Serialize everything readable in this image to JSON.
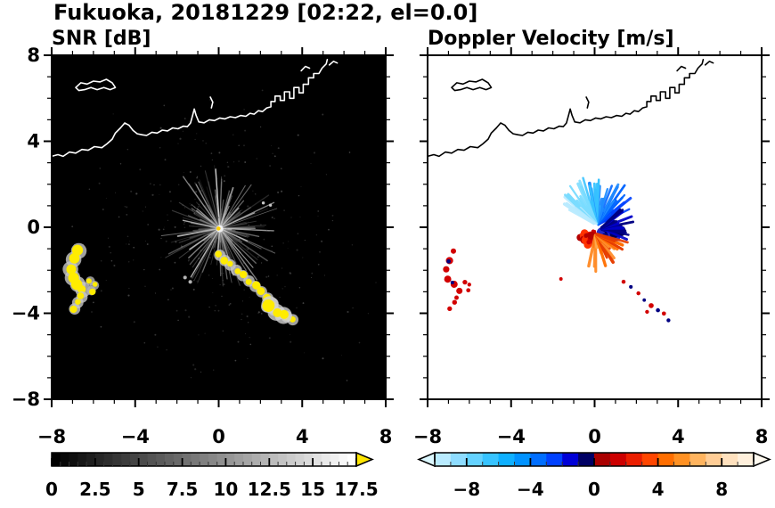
{
  "title": "Fukuoka, 20181229 [02:22, el=0.0]",
  "coastline": {
    "stroke_width": 1.6,
    "segments": [
      [
        [
          -8,
          3.3
        ],
        [
          -7.7,
          3.38
        ],
        [
          -7.45,
          3.3
        ],
        [
          -7.15,
          3.5
        ],
        [
          -6.85,
          3.45
        ],
        [
          -6.55,
          3.62
        ],
        [
          -6.25,
          3.58
        ],
        [
          -5.95,
          3.75
        ],
        [
          -5.6,
          3.7
        ],
        [
          -5.35,
          3.88
        ],
        [
          -5.1,
          4.1
        ],
        [
          -4.95,
          4.38
        ],
        [
          -4.7,
          4.62
        ],
        [
          -4.5,
          4.85
        ],
        [
          -4.3,
          4.75
        ],
        [
          -4.1,
          4.5
        ],
        [
          -3.9,
          4.35
        ],
        [
          -3.65,
          4.3
        ],
        [
          -3.45,
          4.27
        ],
        [
          -3.2,
          4.42
        ],
        [
          -2.95,
          4.38
        ],
        [
          -2.7,
          4.52
        ],
        [
          -2.45,
          4.48
        ],
        [
          -2.2,
          4.62
        ],
        [
          -1.95,
          4.58
        ],
        [
          -1.7,
          4.7
        ],
        [
          -1.5,
          4.68
        ],
        [
          -1.35,
          4.85
        ],
        [
          -1.25,
          5.2
        ],
        [
          -1.17,
          5.5
        ],
        [
          -1.08,
          5.2
        ],
        [
          -0.95,
          4.9
        ],
        [
          -0.7,
          4.86
        ],
        [
          -0.45,
          5.0
        ],
        [
          -0.2,
          4.96
        ],
        [
          0.05,
          5.08
        ],
        [
          0.3,
          5.04
        ],
        [
          0.55,
          5.14
        ],
        [
          0.8,
          5.1
        ],
        [
          1.05,
          5.2
        ],
        [
          1.3,
          5.16
        ],
        [
          1.5,
          5.3
        ],
        [
          1.7,
          5.26
        ],
        [
          1.9,
          5.42
        ],
        [
          2.1,
          5.38
        ],
        [
          2.3,
          5.55
        ],
        [
          2.5,
          5.6
        ],
        [
          2.5,
          5.85
        ],
        [
          2.7,
          5.85
        ],
        [
          2.7,
          6.1
        ],
        [
          2.95,
          6.1
        ],
        [
          2.95,
          5.9
        ],
        [
          3.15,
          5.9
        ],
        [
          3.15,
          6.3
        ],
        [
          3.4,
          6.3
        ],
        [
          3.4,
          6.0
        ],
        [
          3.6,
          6.0
        ],
        [
          3.6,
          6.5
        ],
        [
          3.85,
          6.5
        ],
        [
          3.85,
          6.25
        ],
        [
          4.05,
          6.25
        ],
        [
          4.05,
          6.65
        ],
        [
          4.3,
          6.65
        ],
        [
          4.3,
          6.95
        ],
        [
          4.55,
          6.95
        ],
        [
          4.55,
          7.15
        ],
        [
          4.8,
          7.15
        ],
        [
          4.95,
          7.4
        ],
        [
          5.15,
          7.6
        ],
        [
          5.2,
          7.8
        ]
      ],
      [
        [
          -6.85,
          6.5
        ],
        [
          -6.6,
          6.72
        ],
        [
          -6.3,
          6.66
        ],
        [
          -6.0,
          6.8
        ],
        [
          -5.68,
          6.76
        ],
        [
          -5.38,
          6.88
        ],
        [
          -5.1,
          6.72
        ],
        [
          -4.95,
          6.5
        ],
        [
          -5.2,
          6.4
        ],
        [
          -5.5,
          6.5
        ],
        [
          -5.82,
          6.4
        ],
        [
          -6.12,
          6.5
        ],
        [
          -6.42,
          6.4
        ],
        [
          -6.7,
          6.36
        ],
        [
          -6.85,
          6.5
        ]
      ],
      [
        [
          -0.35,
          5.55
        ],
        [
          -0.28,
          5.82
        ],
        [
          -0.4,
          6.05
        ]
      ],
      [
        [
          3.95,
          7.28
        ],
        [
          4.15,
          7.48
        ],
        [
          4.35,
          7.4
        ]
      ],
      [
        [
          5.3,
          7.55
        ],
        [
          5.5,
          7.72
        ],
        [
          5.68,
          7.64
        ]
      ]
    ]
  },
  "chart_data": [
    {
      "type": "heatmap",
      "name": "snr",
      "title": "SNR [dB]",
      "xlabel": "",
      "ylabel": "",
      "xlim": [
        -8,
        8
      ],
      "ylim": [
        -8,
        8
      ],
      "xticks": [
        -8,
        -4,
        0,
        4,
        8
      ],
      "yticks": [
        -8,
        -4,
        0,
        4,
        8
      ],
      "xtick_labels": [
        "−8",
        "−4",
        "0",
        "4",
        "8"
      ],
      "ytick_labels": [
        "−8",
        "−4",
        "0",
        "4",
        "8"
      ],
      "minor_tick_step": 1,
      "background": "#000000",
      "coast_color": "#ffffff",
      "colorbar": {
        "kind": "gradient-blocks",
        "min": 0,
        "max": 17.5,
        "blocks": 35,
        "tick_values": [
          0,
          2.5,
          5,
          7.5,
          10,
          12.5,
          15,
          17.5
        ],
        "tick_labels": [
          "0",
          "2.5",
          "5",
          "7.5",
          "10",
          "12.5",
          "15",
          "17.5"
        ],
        "minor_step": 0.5,
        "start_color": "#000000",
        "end_color": "#ffffff",
        "over_arrow_color": "#ffe600"
      },
      "echoes": [
        {
          "name": "ground-clutter",
          "kind": "fan",
          "center": [
            0.05,
            -0.05
          ],
          "a0": 0,
          "a1": 360,
          "rays": 140,
          "min_r": 0.25,
          "max_r": 3.0,
          "width": [
            0.7,
            1.5
          ],
          "opacity": [
            0.2,
            0.75
          ],
          "colors": [
            "#787878",
            "#969696",
            "#b4b4b4",
            "#5a5a5a"
          ],
          "color_mode": "random",
          "seed": 11
        },
        {
          "name": "bright-clutter-rays",
          "kind": "fan",
          "center": [
            0.05,
            -0.05
          ],
          "a0": 0,
          "a1": 360,
          "rays": 16,
          "min_r": 1.2,
          "max_r": 2.9,
          "width": [
            1.0,
            1.8
          ],
          "opacity": [
            0.65,
            0.95
          ],
          "colors": [
            "#d2d2d2",
            "#bebebe"
          ],
          "color_mode": "random",
          "seed": 29
        },
        {
          "name": "noise-speckle",
          "kind": "cluster",
          "center": [
            0,
            -0.6
          ],
          "spread": [
            7.7,
            7.0
          ],
          "count": 300,
          "rpx": [
            0.4,
            1.1
          ],
          "opacity": 0.45,
          "colors": [
            "#6e6e6e",
            "#8c8c8c",
            "#505050"
          ],
          "seed": 5
        },
        {
          "name": "radar-site-dot",
          "kind": "chain",
          "points": [
            [
              0.05,
              -0.07
            ]
          ],
          "radius": 0.1,
          "color": "#ffd200",
          "fringe": "#ffffff",
          "seed": 3
        },
        {
          "name": "west-arc",
          "kind": "chain",
          "points": [
            [
              -6.7,
              -1.1
            ],
            [
              -6.95,
              -1.5
            ],
            [
              -7.1,
              -1.95
            ],
            [
              -7.0,
              -2.35
            ],
            [
              -6.75,
              -2.65
            ],
            [
              -6.5,
              -2.9
            ]
          ],
          "radius": 0.22,
          "color": "#ffec00",
          "fringe": "#c8c8c8",
          "seed": 17
        },
        {
          "name": "west-hook",
          "kind": "chain",
          "points": [
            [
              -6.15,
              -2.5
            ],
            [
              -5.95,
              -2.7
            ],
            [
              -6.1,
              -2.95
            ]
          ],
          "radius": 0.13,
          "color": "#ffec00",
          "fringe": "#b4b4b4",
          "seed": 19
        },
        {
          "name": "west-lower",
          "kind": "chain",
          "points": [
            [
              -6.55,
              -3.25
            ],
            [
              -6.75,
              -3.5
            ],
            [
              -6.9,
              -3.8
            ]
          ],
          "radius": 0.16,
          "color": "#ffec00",
          "fringe": "#c8c8c8",
          "seed": 23
        },
        {
          "name": "southeast-chain",
          "kind": "chain",
          "points": [
            [
              0.05,
              -1.3
            ],
            [
              0.3,
              -1.55
            ],
            [
              0.55,
              -1.75
            ],
            [
              0.85,
              -2.0
            ],
            [
              1.15,
              -2.25
            ],
            [
              1.45,
              -2.5
            ],
            [
              1.75,
              -2.75
            ],
            [
              2.05,
              -3.0
            ],
            [
              2.35,
              -3.3
            ],
            [
              2.6,
              -3.55
            ],
            [
              2.3,
              -3.7
            ],
            [
              2.65,
              -3.85
            ],
            [
              2.95,
              -4.0
            ],
            [
              3.25,
              -4.15
            ],
            [
              3.55,
              -4.3
            ]
          ],
          "radius": 0.16,
          "color": "#ffec00",
          "fringe": "#c8c8c8",
          "seed": 31
        },
        {
          "name": "southeast-blobs",
          "kind": "chain",
          "points": [
            [
              2.45,
              -3.6
            ],
            [
              2.75,
              -3.95
            ],
            [
              3.1,
              -4.1
            ]
          ],
          "radius": 0.24,
          "color": "#ffec00",
          "fringe": "#d2d2d2",
          "seed": 37
        },
        {
          "name": "echo-dash",
          "kind": "chain",
          "points": [
            [
              -1.55,
              -2.35
            ],
            [
              -1.4,
              -2.5
            ]
          ],
          "radius": 0.07,
          "color": "#b4b4b4",
          "fringe": null,
          "seed": 41
        },
        {
          "name": "streak-ne",
          "kind": "chain",
          "points": [
            [
              2.2,
              1.15
            ],
            [
              2.45,
              1.08
            ]
          ],
          "radius": 0.07,
          "color": "#c8c8c8",
          "fringe": null,
          "seed": 43
        }
      ]
    },
    {
      "type": "heatmap",
      "name": "velocity",
      "title": "Doppler Velocity [m/s]",
      "xlabel": "",
      "ylabel": "",
      "xlim": [
        -8,
        8
      ],
      "ylim": [
        -8,
        8
      ],
      "xticks": [
        -8,
        -4,
        0,
        4,
        8
      ],
      "yticks": [
        -8,
        -4,
        0,
        4,
        8
      ],
      "xtick_labels": [
        "−8",
        "−4",
        "0",
        "4",
        "8"
      ],
      "ytick_labels": [
        "−8",
        "−4",
        "0",
        "4",
        "8"
      ],
      "minor_tick_step": 1,
      "background": "#ffffff",
      "coast_color": "#000000",
      "colorbar": {
        "kind": "segments",
        "min": -10,
        "max": 10,
        "tick_values": [
          -8,
          -4,
          0,
          4,
          8
        ],
        "tick_labels": [
          "−8",
          "−4",
          "0",
          "4",
          "8"
        ],
        "minor_step": 1,
        "segment_colors": [
          "#b9ebff",
          "#8edcff",
          "#64d2ff",
          "#37c3ff",
          "#0fb0ff",
          "#0092ff",
          "#006eff",
          "#0041ff",
          "#0000d7",
          "#000064",
          "#aa0000",
          "#cd0000",
          "#eb1e00",
          "#ff4600",
          "#ff6e00",
          "#ff9123",
          "#ffb45f",
          "#ffcd96",
          "#ffe1be",
          "#fff0dc"
        ],
        "under_arrow_color": "#dcf8ff",
        "over_arrow_color": "#fffaf0"
      },
      "echoes": [
        {
          "name": "approaching-fan",
          "kind": "fan",
          "center": [
            0.1,
            0.1
          ],
          "a0": 28,
          "a1": 152,
          "rays": 75,
          "min_r": 0.3,
          "max_r": 2.3,
          "width": [
            2.2,
            3.8
          ],
          "opacity": [
            0.85,
            1
          ],
          "colors": [
            "#0041ff",
            "#0064ff",
            "#1e8cff",
            "#37c3ff",
            "#7adcff",
            "#b9ebff"
          ],
          "seed": 51
        },
        {
          "name": "receding-core",
          "kind": "cluster",
          "center": [
            0.8,
            -0.2
          ],
          "spread": [
            0.55,
            0.4
          ],
          "count": 60,
          "rpx": [
            2.5,
            6
          ],
          "opacity": 1,
          "colors": [
            "#000082",
            "#0000b9",
            "#000050",
            "#2328c8"
          ],
          "seed": 53
        },
        {
          "name": "receding-spikes",
          "kind": "fan",
          "center": [
            0.3,
            -0.05
          ],
          "a0": -20,
          "a1": 45,
          "rays": 14,
          "min_r": 0.5,
          "max_r": 1.6,
          "width": [
            2.5,
            3.5
          ],
          "opacity": [
            0.9,
            1
          ],
          "colors": [
            "#000082",
            "#0000c8"
          ],
          "color_mode": "random",
          "seed": 59
        },
        {
          "name": "outbound-red-patch",
          "kind": "cluster",
          "center": [
            -0.25,
            -0.5
          ],
          "spread": [
            0.45,
            0.32
          ],
          "count": 38,
          "rpx": [
            2.5,
            5.5
          ],
          "opacity": 1,
          "colors": [
            "#d20000",
            "#b40000",
            "#ff3200"
          ],
          "seed": 61
        },
        {
          "name": "outbound-orange-fan",
          "kind": "fan",
          "center": [
            0.05,
            -0.3
          ],
          "a0": -100,
          "a1": -15,
          "rays": 26,
          "min_r": 0.4,
          "max_r": 1.8,
          "width": [
            2.5,
            3.8
          ],
          "opacity": [
            0.9,
            1
          ],
          "colors": [
            "#e63c00",
            "#ff6e00",
            "#ff8c28",
            "#ffaa50"
          ],
          "color_mode": "random",
          "seed": 67
        },
        {
          "name": "radar-site-gap",
          "kind": "chain",
          "points": [
            [
              0.1,
              -0.02
            ]
          ],
          "radius": 0.12,
          "color": "#ffffff",
          "fringe": null,
          "seed": 71
        },
        {
          "name": "west-arc",
          "kind": "chain",
          "points": [
            [
              -6.7,
              -1.1
            ],
            [
              -6.95,
              -1.5
            ],
            [
              -7.1,
              -1.95
            ],
            [
              -7.0,
              -2.35
            ],
            [
              -6.75,
              -2.65
            ],
            [
              -6.5,
              -2.9
            ]
          ],
          "radius": 0.14,
          "color": "#d20000",
          "fringe": null,
          "seed": 73
        },
        {
          "name": "west-arc-dark",
          "kind": "chain",
          "points": [
            [
              -6.93,
              -1.6
            ],
            [
              -6.78,
              -2.62
            ]
          ],
          "radius": 0.09,
          "color": "#000082",
          "fringe": null,
          "seed": 79
        },
        {
          "name": "west-hook",
          "kind": "chain",
          "points": [
            [
              -6.15,
              -2.5
            ],
            [
              -5.95,
              -2.7
            ],
            [
              -6.1,
              -2.95
            ]
          ],
          "radius": 0.1,
          "color": "#d20000",
          "fringe": null,
          "seed": 83
        },
        {
          "name": "west-lower",
          "kind": "chain",
          "points": [
            [
              -6.55,
              -3.25
            ],
            [
              -6.75,
              -3.5
            ],
            [
              -6.9,
              -3.8
            ]
          ],
          "radius": 0.11,
          "color": "#d20000",
          "fringe": null,
          "seed": 89
        },
        {
          "name": "southeast-red",
          "kind": "chain",
          "points": [
            [
              1.45,
              -2.5
            ],
            [
              2.1,
              -3.05
            ],
            [
              2.7,
              -3.6
            ],
            [
              3.3,
              -4.05
            ],
            [
              2.5,
              -3.95
            ]
          ],
          "radius": 0.1,
          "color": "#d20000",
          "fringe": null,
          "seed": 97
        },
        {
          "name": "southeast-dark",
          "kind": "chain",
          "points": [
            [
              1.8,
              -2.8
            ],
            [
              2.4,
              -3.35
            ],
            [
              3.0,
              -3.85
            ],
            [
              3.55,
              -4.3
            ]
          ],
          "radius": 0.09,
          "color": "#000082",
          "fringe": null,
          "seed": 101
        },
        {
          "name": "echo-dash",
          "kind": "chain",
          "points": [
            [
              -1.55,
              -2.4
            ]
          ],
          "radius": 0.07,
          "color": "#d20000",
          "fringe": null,
          "seed": 103
        }
      ]
    }
  ]
}
